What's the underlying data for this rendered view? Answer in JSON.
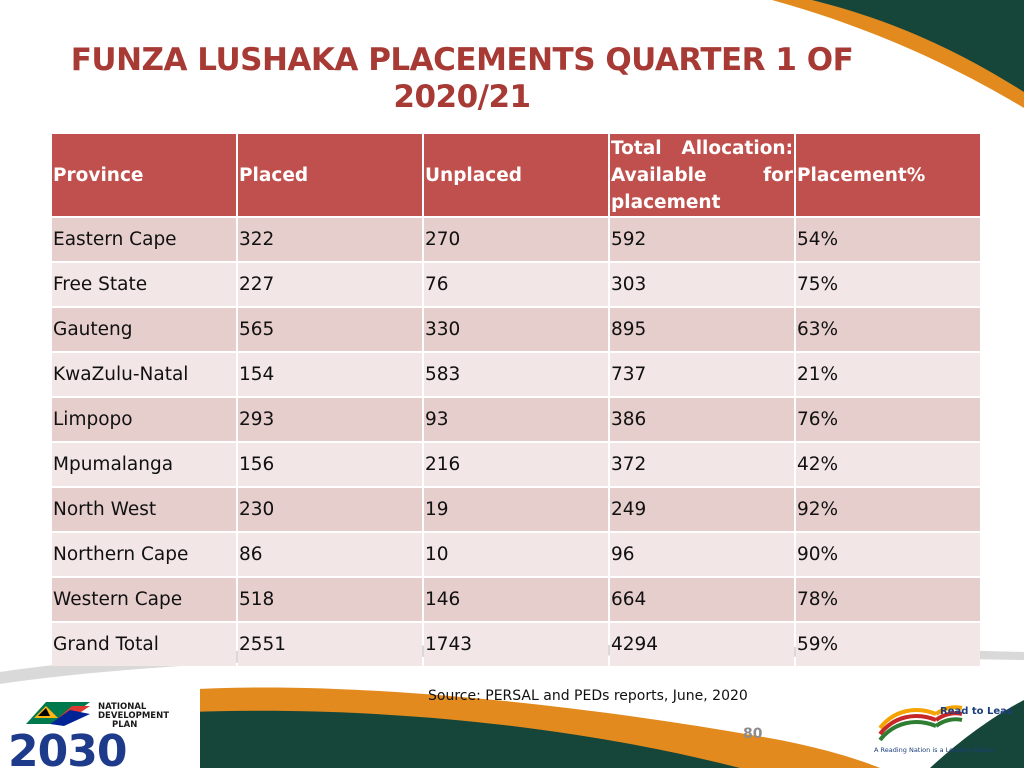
{
  "slide": {
    "title": "FUNZA LUSHAKA PLACEMENTS QUARTER 1 OF 2020/21",
    "source": "Source: PERSAL and PEDs reports, June, 2020",
    "page_number": "80"
  },
  "table": {
    "headers": [
      "Province",
      "Placed",
      "Unplaced",
      "Total Allocation: Available for placement",
      "Placement%"
    ],
    "rows": [
      [
        "Eastern Cape",
        "322",
        "270",
        "592",
        "54%"
      ],
      [
        "Free State",
        "227",
        "76",
        "303",
        "75%"
      ],
      [
        "Gauteng",
        "565",
        "330",
        "895",
        "63%"
      ],
      [
        "KwaZulu-Natal",
        "154",
        "583",
        "737",
        "21%"
      ],
      [
        "Limpopo",
        "293",
        "93",
        "386",
        "76%"
      ],
      [
        "Mpumalanga",
        "156",
        "216",
        "372",
        "42%"
      ],
      [
        "North West",
        "230",
        "19",
        "249",
        "92%"
      ],
      [
        "Northern Cape",
        "86",
        "10",
        "96",
        "90%"
      ],
      [
        "Western Cape",
        "518",
        "146",
        "664",
        "78%"
      ],
      [
        "Grand Total",
        "2551",
        "1743",
        "4294",
        "59%"
      ]
    ]
  },
  "logos": {
    "ndp_line1": "NATIONAL",
    "ndp_line2": "DEVELOPMENT",
    "ndp_line3": "PLAN",
    "ndp_year": "2030",
    "rtl_title": "Read to Lead",
    "rtl_tagline": "A Reading Nation is a Leading Nation"
  },
  "colors": {
    "header_bg": "#c0504d",
    "row_odd": "#e6cecd",
    "row_even": "#f2e6e6",
    "title": "#a83a35",
    "accent_orange": "#e38a1e",
    "accent_green": "#16463a"
  }
}
